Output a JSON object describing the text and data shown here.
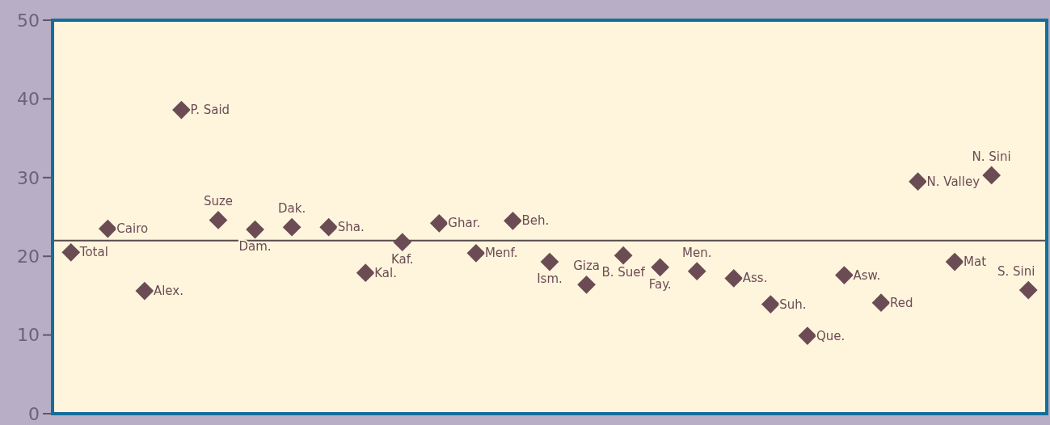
{
  "chart_data": {
    "type": "scatter",
    "categories": [
      null,
      null,
      null,
      null,
      null,
      null,
      null,
      null,
      null,
      null,
      null,
      null,
      null,
      null,
      null,
      null,
      null,
      null,
      null,
      null,
      null,
      null,
      null,
      null,
      null,
      null,
      null
    ],
    "series": [
      {
        "color": "#6b4c54",
        "values": [
          20.5,
          23.5,
          15.6,
          38.6,
          24.6,
          23.4,
          23.7,
          23.7,
          17.9,
          21.8,
          24.2,
          20.4,
          24.5,
          19.3,
          16.4,
          20.1,
          18.6,
          18.1,
          17.2,
          13.9,
          9.9,
          17.6,
          14.1,
          29.5,
          19.3,
          30.3,
          15.7
        ]
      }
    ],
    "annotations": [
      "Total",
      "Cairo",
      "Alex.",
      "P. Said",
      "Suze",
      "Dam.",
      "Dak.",
      "Sha.",
      "Kal.",
      "Kaf.",
      "Ghar.",
      "Menf.",
      "Beh.",
      "Ism.",
      "Giza",
      "B. Suef",
      "Fay.",
      "Men.",
      "Ass.",
      "Suh.",
      "Que.",
      "Asw.",
      "Red",
      "N. Valley",
      "Mat",
      "N. Sini",
      "S. Sini"
    ],
    "ylim": [
      0,
      50
    ],
    "yticks": [
      0,
      10,
      20,
      30,
      40,
      50
    ],
    "ref_lines": [
      {
        "axis": "y",
        "value": 22,
        "color": "#5a4a4a"
      }
    ],
    "marker": "diamond",
    "grid": false,
    "tick_labels": "y"
  }
}
